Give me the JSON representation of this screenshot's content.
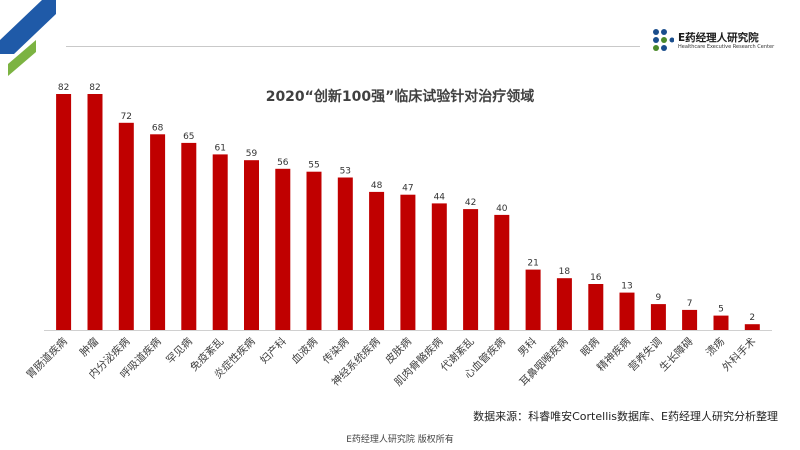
{
  "brand": {
    "name": "E药经理人研究院",
    "subtitle": "Healthcare Executive Research Center",
    "dot_colors": [
      "#1a4d8c",
      "#4a8a2a"
    ]
  },
  "colors": {
    "bar": "#c00000",
    "corner_blue": "#1f5aa8",
    "corner_green": "#7cb342"
  },
  "chart_data": {
    "type": "bar",
    "title": "2020“创新100强”临床试验针对治疗领域",
    "categories": [
      "胃肠道疾病",
      "肿瘤",
      "内分泌疾病",
      "呼吸道疾病",
      "罕见病",
      "免疫紊乱",
      "炎症性疾病",
      "妇产科",
      "血液病",
      "传染病",
      "神经系统疾病",
      "皮肤病",
      "肌肉骨骼疾病",
      "代谢紊乱",
      "心血管疾病",
      "男科",
      "耳鼻咽喉疾病",
      "眼病",
      "精神疾病",
      "营养失调",
      "生长障碍",
      "溃疡",
      "外科手术"
    ],
    "values": [
      82,
      82,
      72,
      68,
      65,
      61,
      59,
      56,
      55,
      53,
      48,
      47,
      44,
      42,
      40,
      21,
      18,
      16,
      13,
      9,
      7,
      5,
      2
    ],
    "xlabel": "",
    "ylabel": "",
    "ylim": [
      0,
      82
    ],
    "grid": false,
    "legend": "none"
  },
  "source_note": "数据来源：科睿唯安Cortellis数据库、E药经理人研究分析整理",
  "footer": "E药经理人研究院  版权所有"
}
